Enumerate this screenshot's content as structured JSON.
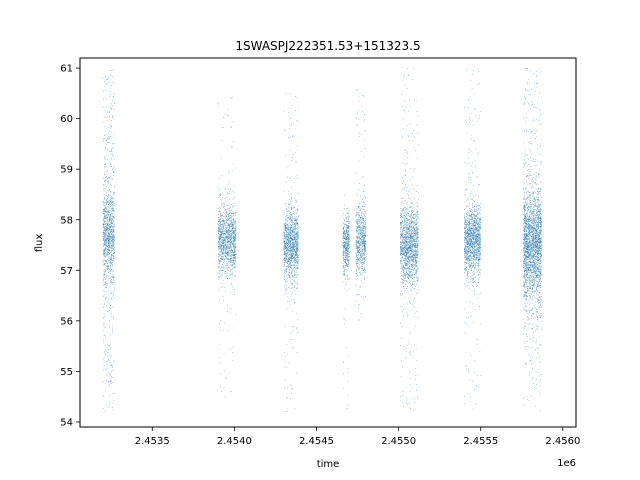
{
  "chart_data": {
    "type": "scatter",
    "title": "1SWASPJ222351.53+151323.5",
    "xlabel": "time",
    "ylabel": "flux",
    "x_offset_label": "1e6",
    "xlim": [
      2453060,
      2456080
    ],
    "ylim": [
      53.9,
      61.2
    ],
    "x_ticks": [
      2453500,
      2454000,
      2454500,
      2455000,
      2455500,
      2456000
    ],
    "x_tick_labels": [
      "2.4535",
      "2.4540",
      "2.4545",
      "2.4550",
      "2.4555",
      "2.4560"
    ],
    "y_ticks": [
      54,
      55,
      56,
      57,
      58,
      59,
      60,
      61
    ],
    "y_tick_labels": [
      "54",
      "55",
      "56",
      "57",
      "58",
      "59",
      "60",
      "61"
    ],
    "grid": false,
    "marker_color": "#1f77b4",
    "marker_size": 0.8,
    "clusters": [
      {
        "x_start": 2453200,
        "x_end": 2453270,
        "y_center": 57.7,
        "y_spread": 0.45,
        "outlier_min": 54.2,
        "outlier_max": 61.0,
        "outlier_fraction": 0.35,
        "count": 1300
      },
      {
        "x_start": 2453900,
        "x_end": 2454010,
        "y_center": 57.6,
        "y_spread": 0.35,
        "outlier_min": 54.5,
        "outlier_max": 60.5,
        "outlier_fraction": 0.08,
        "count": 1300
      },
      {
        "x_start": 2454300,
        "x_end": 2454390,
        "y_center": 57.5,
        "y_spread": 0.35,
        "outlier_min": 54.2,
        "outlier_max": 60.5,
        "outlier_fraction": 0.1,
        "count": 1300
      },
      {
        "x_start": 2454660,
        "x_end": 2454700,
        "y_center": 57.5,
        "y_spread": 0.3,
        "outlier_min": 54.2,
        "outlier_max": 58.5,
        "outlier_fraction": 0.06,
        "count": 500
      },
      {
        "x_start": 2454740,
        "x_end": 2454800,
        "y_center": 57.6,
        "y_spread": 0.35,
        "outlier_min": 56.0,
        "outlier_max": 60.6,
        "outlier_fraction": 0.1,
        "count": 700
      },
      {
        "x_start": 2455010,
        "x_end": 2455120,
        "y_center": 57.5,
        "y_spread": 0.4,
        "outlier_min": 54.2,
        "outlier_max": 61.0,
        "outlier_fraction": 0.12,
        "count": 1600
      },
      {
        "x_start": 2455400,
        "x_end": 2455500,
        "y_center": 57.6,
        "y_spread": 0.35,
        "outlier_min": 54.2,
        "outlier_max": 61.0,
        "outlier_fraction": 0.1,
        "count": 1500
      },
      {
        "x_start": 2455760,
        "x_end": 2455870,
        "y_center": 57.5,
        "y_spread": 0.55,
        "outlier_min": 54.2,
        "outlier_max": 61.0,
        "outlier_fraction": 0.15,
        "count": 2600
      }
    ]
  }
}
